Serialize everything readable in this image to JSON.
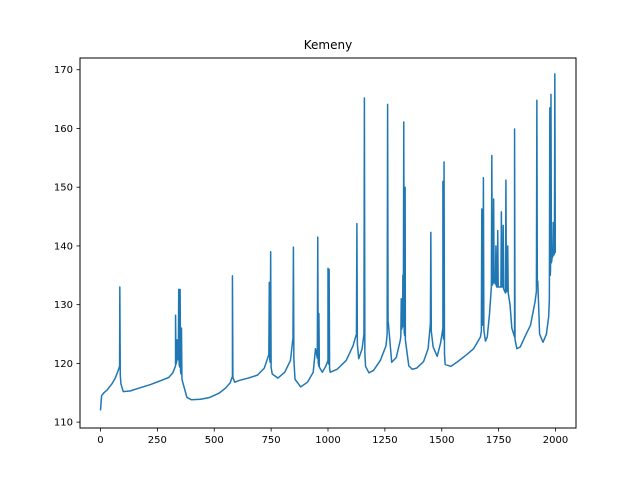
{
  "chart_data": {
    "type": "line",
    "title": "Kemeny",
    "xlabel": "",
    "ylabel": "",
    "xlim": [
      -90,
      2090
    ],
    "ylim": [
      109,
      172
    ],
    "xticks": [
      0,
      250,
      500,
      750,
      1000,
      1250,
      1500,
      1750,
      2000
    ],
    "yticks": [
      110,
      120,
      130,
      140,
      150,
      160,
      170
    ],
    "grid": false,
    "legend": "none",
    "line_color": "#1f77b4",
    "series": [
      {
        "baseline": [
          [
            0,
            112
          ],
          [
            5,
            114.5
          ],
          [
            15,
            115
          ],
          [
            30,
            115.5
          ],
          [
            50,
            116.5
          ],
          [
            65,
            117.5
          ],
          [
            75,
            118.5
          ],
          [
            84,
            119.5
          ],
          [
            90,
            116.5
          ],
          [
            100,
            115.2
          ],
          [
            130,
            115.3
          ],
          [
            170,
            115.8
          ],
          [
            220,
            116.4
          ],
          [
            260,
            117
          ],
          [
            300,
            117.6
          ],
          [
            318,
            118.4
          ],
          [
            330,
            119.6
          ],
          [
            340,
            121
          ],
          [
            360,
            117
          ],
          [
            380,
            114.2
          ],
          [
            400,
            113.8
          ],
          [
            440,
            113.9
          ],
          [
            480,
            114.2
          ],
          [
            520,
            114.9
          ],
          [
            550,
            115.8
          ],
          [
            570,
            116.7
          ],
          [
            580,
            117.8
          ],
          [
            590,
            116.8
          ],
          [
            610,
            117.1
          ],
          [
            650,
            117.5
          ],
          [
            690,
            118
          ],
          [
            720,
            119.2
          ],
          [
            740,
            121.5
          ],
          [
            755,
            118.2
          ],
          [
            780,
            117.5
          ],
          [
            810,
            118.5
          ],
          [
            835,
            120.5
          ],
          [
            845,
            124
          ],
          [
            855,
            117.3
          ],
          [
            880,
            116
          ],
          [
            910,
            116.8
          ],
          [
            935,
            118.5
          ],
          [
            945,
            122.5
          ],
          [
            960,
            119.5
          ],
          [
            975,
            118.5
          ],
          [
            990,
            119.5
          ],
          [
            1000,
            120.5
          ],
          [
            1010,
            118.5
          ],
          [
            1040,
            119
          ],
          [
            1080,
            120.5
          ],
          [
            1110,
            123
          ],
          [
            1125,
            125
          ],
          [
            1135,
            120.8
          ],
          [
            1150,
            122.5
          ],
          [
            1158,
            125
          ],
          [
            1165,
            119.5
          ],
          [
            1180,
            118.4
          ],
          [
            1200,
            118.8
          ],
          [
            1230,
            120.5
          ],
          [
            1255,
            123
          ],
          [
            1265,
            127
          ],
          [
            1280,
            120.2
          ],
          [
            1300,
            121
          ],
          [
            1318,
            124
          ],
          [
            1328,
            127
          ],
          [
            1340,
            124
          ],
          [
            1355,
            119.6
          ],
          [
            1370,
            119
          ],
          [
            1390,
            119.2
          ],
          [
            1420,
            120.3
          ],
          [
            1440,
            122.5
          ],
          [
            1450,
            126.8
          ],
          [
            1462,
            122.8
          ],
          [
            1480,
            121.2
          ],
          [
            1495,
            123.5
          ],
          [
            1505,
            126
          ],
          [
            1515,
            119.8
          ],
          [
            1540,
            119.5
          ],
          [
            1570,
            120.3
          ],
          [
            1610,
            121.5
          ],
          [
            1640,
            122.5
          ],
          [
            1670,
            124.5
          ],
          [
            1680,
            127
          ],
          [
            1692,
            123.8
          ],
          [
            1700,
            124.5
          ],
          [
            1710,
            128.5
          ],
          [
            1718,
            133
          ],
          [
            1730,
            134
          ],
          [
            1742,
            133
          ],
          [
            1755,
            133
          ],
          [
            1768,
            133
          ],
          [
            1780,
            132
          ],
          [
            1790,
            132.5
          ],
          [
            1800,
            130
          ],
          [
            1808,
            126
          ],
          [
            1820,
            124.5
          ],
          [
            1830,
            122.5
          ],
          [
            1845,
            122.8
          ],
          [
            1865,
            124.5
          ],
          [
            1890,
            126.5
          ],
          [
            1910,
            130.5
          ],
          [
            1922,
            134
          ],
          [
            1930,
            125
          ],
          [
            1945,
            123.6
          ],
          [
            1960,
            125
          ],
          [
            1970,
            128
          ],
          [
            1978,
            136
          ],
          [
            1985,
            138
          ],
          [
            1993,
            138.5
          ],
          [
            2000,
            139
          ]
        ],
        "spikes": [
          [
            85,
            133
          ],
          [
            330,
            128.2
          ],
          [
            337,
            124
          ],
          [
            344,
            132.6
          ],
          [
            350,
            132.6
          ],
          [
            356,
            126
          ],
          [
            580,
            134.9
          ],
          [
            742,
            133.8
          ],
          [
            748,
            139
          ],
          [
            848,
            139.8
          ],
          [
            955,
            141.5
          ],
          [
            960,
            128.5
          ],
          [
            1000,
            136.2
          ],
          [
            1005,
            136
          ],
          [
            1127,
            143.8
          ],
          [
            1160,
            165.2
          ],
          [
            1262,
            164.1
          ],
          [
            1322,
            131
          ],
          [
            1329,
            135
          ],
          [
            1333,
            161.1
          ],
          [
            1339,
            150
          ],
          [
            1452,
            142.3
          ],
          [
            1505,
            151
          ],
          [
            1510,
            154.3
          ],
          [
            1676,
            146.3
          ],
          [
            1683,
            151.6
          ],
          [
            1720,
            155.4
          ],
          [
            1728,
            148
          ],
          [
            1738,
            140
          ],
          [
            1746,
            142.6
          ],
          [
            1762,
            145.8
          ],
          [
            1770,
            143.5
          ],
          [
            1782,
            151.2
          ],
          [
            1790,
            140
          ],
          [
            1820,
            159.9
          ],
          [
            1918,
            164.8
          ],
          [
            1975,
            163.5
          ],
          [
            1980,
            165.8
          ],
          [
            1990,
            144
          ],
          [
            1997,
            169.3
          ]
        ]
      }
    ]
  }
}
